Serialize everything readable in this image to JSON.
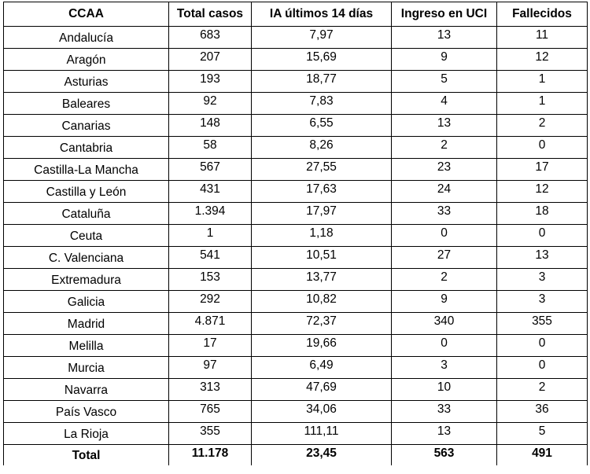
{
  "table": {
    "headers": [
      "CCAA",
      "Total casos",
      "IA últimos 14 días",
      "Ingreso en UCI",
      "Fallecidos"
    ],
    "rows": [
      [
        "Andalucía",
        "683",
        "7,97",
        "13",
        "11"
      ],
      [
        "Aragón",
        "207",
        "15,69",
        "9",
        "12"
      ],
      [
        "Asturias",
        "193",
        "18,77",
        "5",
        "1"
      ],
      [
        "Baleares",
        "92",
        "7,83",
        "4",
        "1"
      ],
      [
        "Canarias",
        "148",
        "6,55",
        "13",
        "2"
      ],
      [
        "Cantabria",
        "58",
        "8,26",
        "2",
        "0"
      ],
      [
        "Castilla-La Mancha",
        "567",
        "27,55",
        "23",
        "17"
      ],
      [
        "Castilla y León",
        "431",
        "17,63",
        "24",
        "12"
      ],
      [
        "Cataluña",
        "1.394",
        "17,97",
        "33",
        "18"
      ],
      [
        "Ceuta",
        "1",
        "1,18",
        "0",
        "0"
      ],
      [
        "C. Valenciana",
        "541",
        "10,51",
        "27",
        "13"
      ],
      [
        "Extremadura",
        "153",
        "13,77",
        "2",
        "3"
      ],
      [
        "Galicia",
        "292",
        "10,82",
        "9",
        "3"
      ],
      [
        "Madrid",
        "4.871",
        "72,37",
        "340",
        "355"
      ],
      [
        "Melilla",
        "17",
        "19,66",
        "0",
        "0"
      ],
      [
        "Murcia",
        "97",
        "6,49",
        "3",
        "0"
      ],
      [
        "Navarra",
        "313",
        "47,69",
        "10",
        "2"
      ],
      [
        "País Vasco",
        "765",
        "34,06",
        "33",
        "36"
      ],
      [
        "La Rioja",
        "355",
        "111,11",
        "13",
        "5"
      ]
    ],
    "total": [
      "Total",
      "11.178",
      "23,45",
      "563",
      "491"
    ]
  }
}
